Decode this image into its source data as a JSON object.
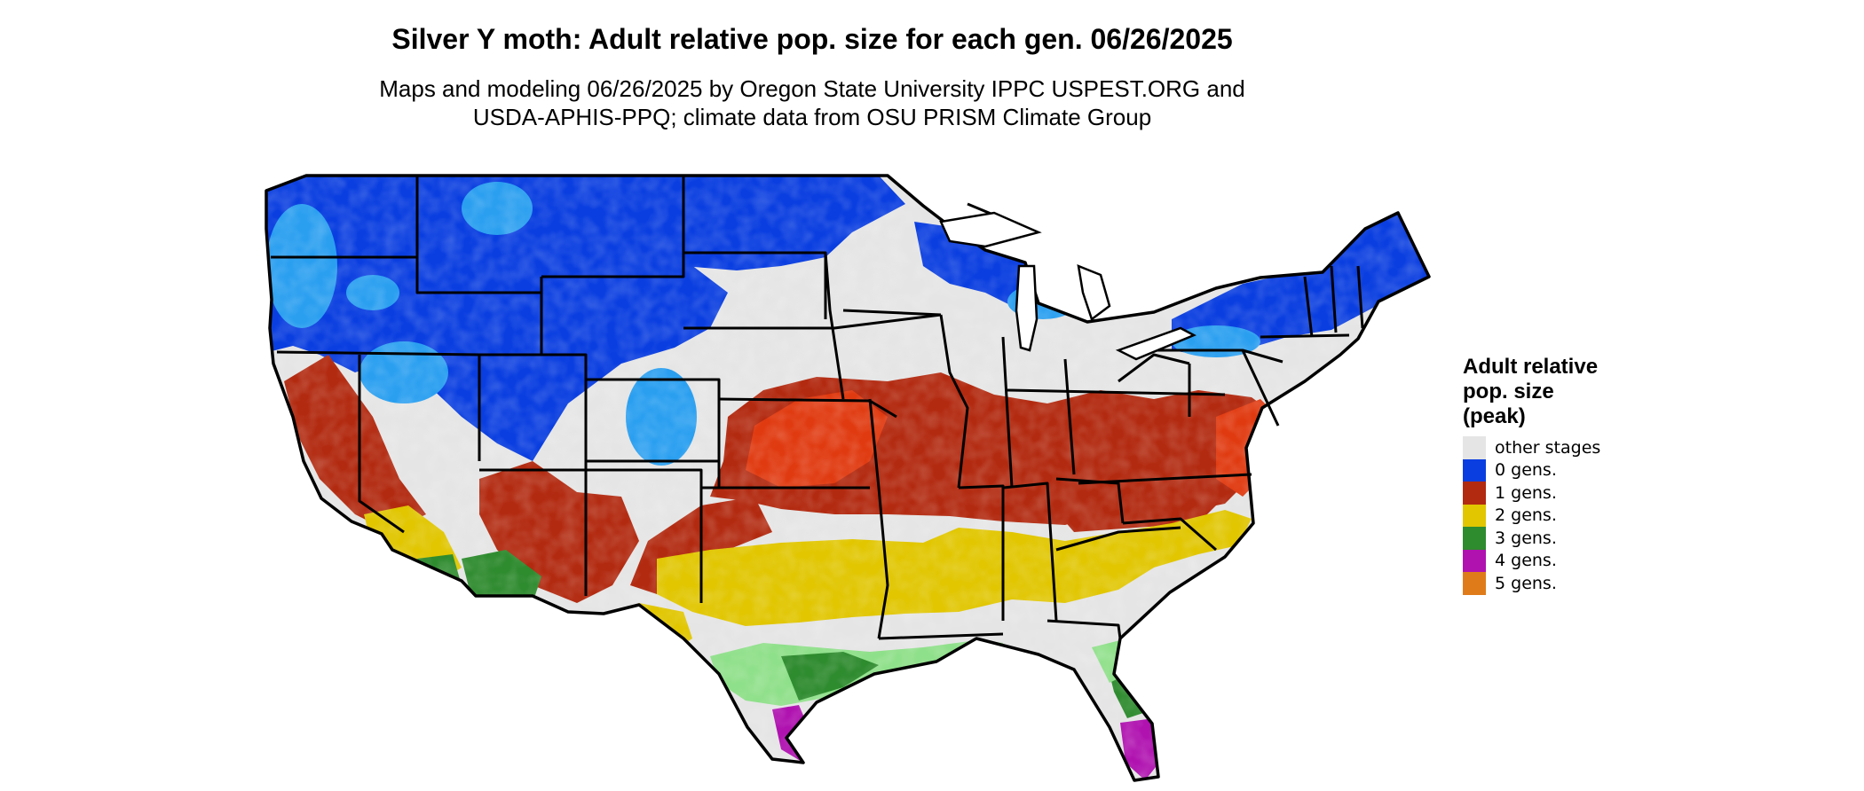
{
  "title": "Silver Y moth: Adult relative pop. size for each gen. 06/26/2025",
  "subtitle_lines": [
    "Maps and modeling 06/26/2025 by Oregon State University IPPC USPEST.ORG and",
    "USDA-APHIS-PPQ; climate data from OSU PRISM Climate Group"
  ],
  "legend": {
    "title_lines": [
      "Adult relative",
      "pop. size",
      "(peak)"
    ],
    "items": [
      {
        "key": "other",
        "label": "other stages",
        "color": "#e5e5e5"
      },
      {
        "key": "g0",
        "label": "0 gens.",
        "color": "#0a3ee0"
      },
      {
        "key": "g1",
        "label": "1 gens.",
        "color": "#b22a10"
      },
      {
        "key": "g2",
        "label": "2 gens.",
        "color": "#e1c600"
      },
      {
        "key": "g3",
        "label": "3 gens.",
        "color": "#2e8b2e"
      },
      {
        "key": "g4",
        "label": "4 gens.",
        "color": "#b012b0"
      },
      {
        "key": "g5",
        "label": "5 gens.",
        "color": "#e07b1a"
      }
    ]
  },
  "map": {
    "region": "contiguous-united-states",
    "light_blue": "#2a9ff0",
    "light_green": "#8fe08a",
    "orange_red": "#e03a10"
  }
}
